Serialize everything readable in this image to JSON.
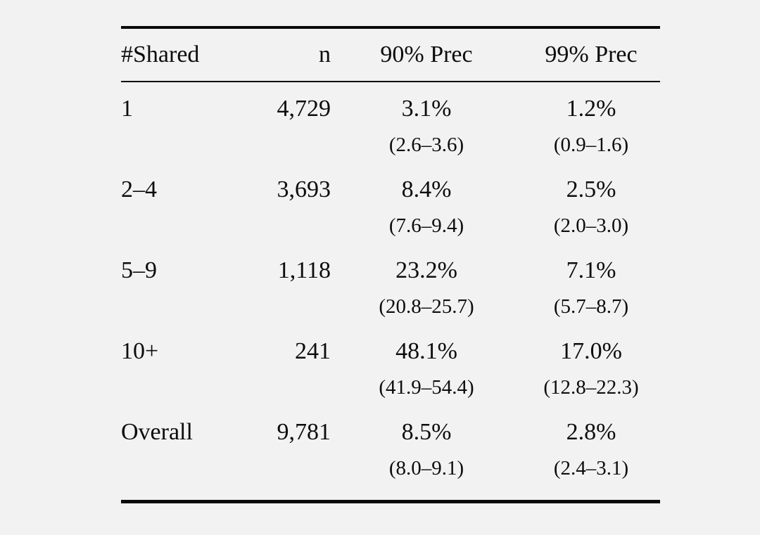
{
  "page": {
    "background_color": "#f2f2f2",
    "text_color": "#0d0d0d",
    "rule_color": "#0a0a0a"
  },
  "table": {
    "headers": [
      "#Shared",
      "n",
      "90% Prec",
      "99% Prec"
    ],
    "rows": [
      {
        "shared": "1",
        "n": "4,729",
        "prec90": "3.1%",
        "ci90": "(2.6–3.6)",
        "prec99": "1.2%",
        "ci99": "(0.9–1.6)"
      },
      {
        "shared": "2–4",
        "n": "3,693",
        "prec90": "8.4%",
        "ci90": "(7.6–9.4)",
        "prec99": "2.5%",
        "ci99": "(2.0–3.0)"
      },
      {
        "shared": "5–9",
        "n": "1,118",
        "prec90": "23.2%",
        "ci90": "(20.8–25.7)",
        "prec99": "7.1%",
        "ci99": "(5.7–8.7)"
      },
      {
        "shared": "10+",
        "n": "241",
        "prec90": "48.1%",
        "ci90": "(41.9–54.4)",
        "prec99": "17.0%",
        "ci99": "(12.8–22.3)"
      },
      {
        "shared": "Overall",
        "n": "9,781",
        "prec90": "8.5%",
        "ci90": "(8.0–9.1)",
        "prec99": "2.8%",
        "ci99": "(2.4–3.1)"
      }
    ]
  },
  "chart_data": {
    "type": "table",
    "columns": [
      "#Shared",
      "n",
      "90% Prec",
      "99% Prec"
    ],
    "rows": [
      [
        "1",
        "4,729",
        "3.1% (2.6–3.6)",
        "1.2% (0.9–1.6)"
      ],
      [
        "2–4",
        "3,693",
        "8.4% (7.6–9.4)",
        "2.5% (2.0–3.0)"
      ],
      [
        "5–9",
        "1,118",
        "23.2% (20.8–25.7)",
        "7.1% (5.7–8.7)"
      ],
      [
        "10+",
        "241",
        "48.1% (41.9–54.4)",
        "17.0% (12.8–22.3)"
      ],
      [
        "Overall",
        "9,781",
        "8.5% (8.0–9.1)",
        "2.8% (2.4–3.1)"
      ]
    ]
  }
}
